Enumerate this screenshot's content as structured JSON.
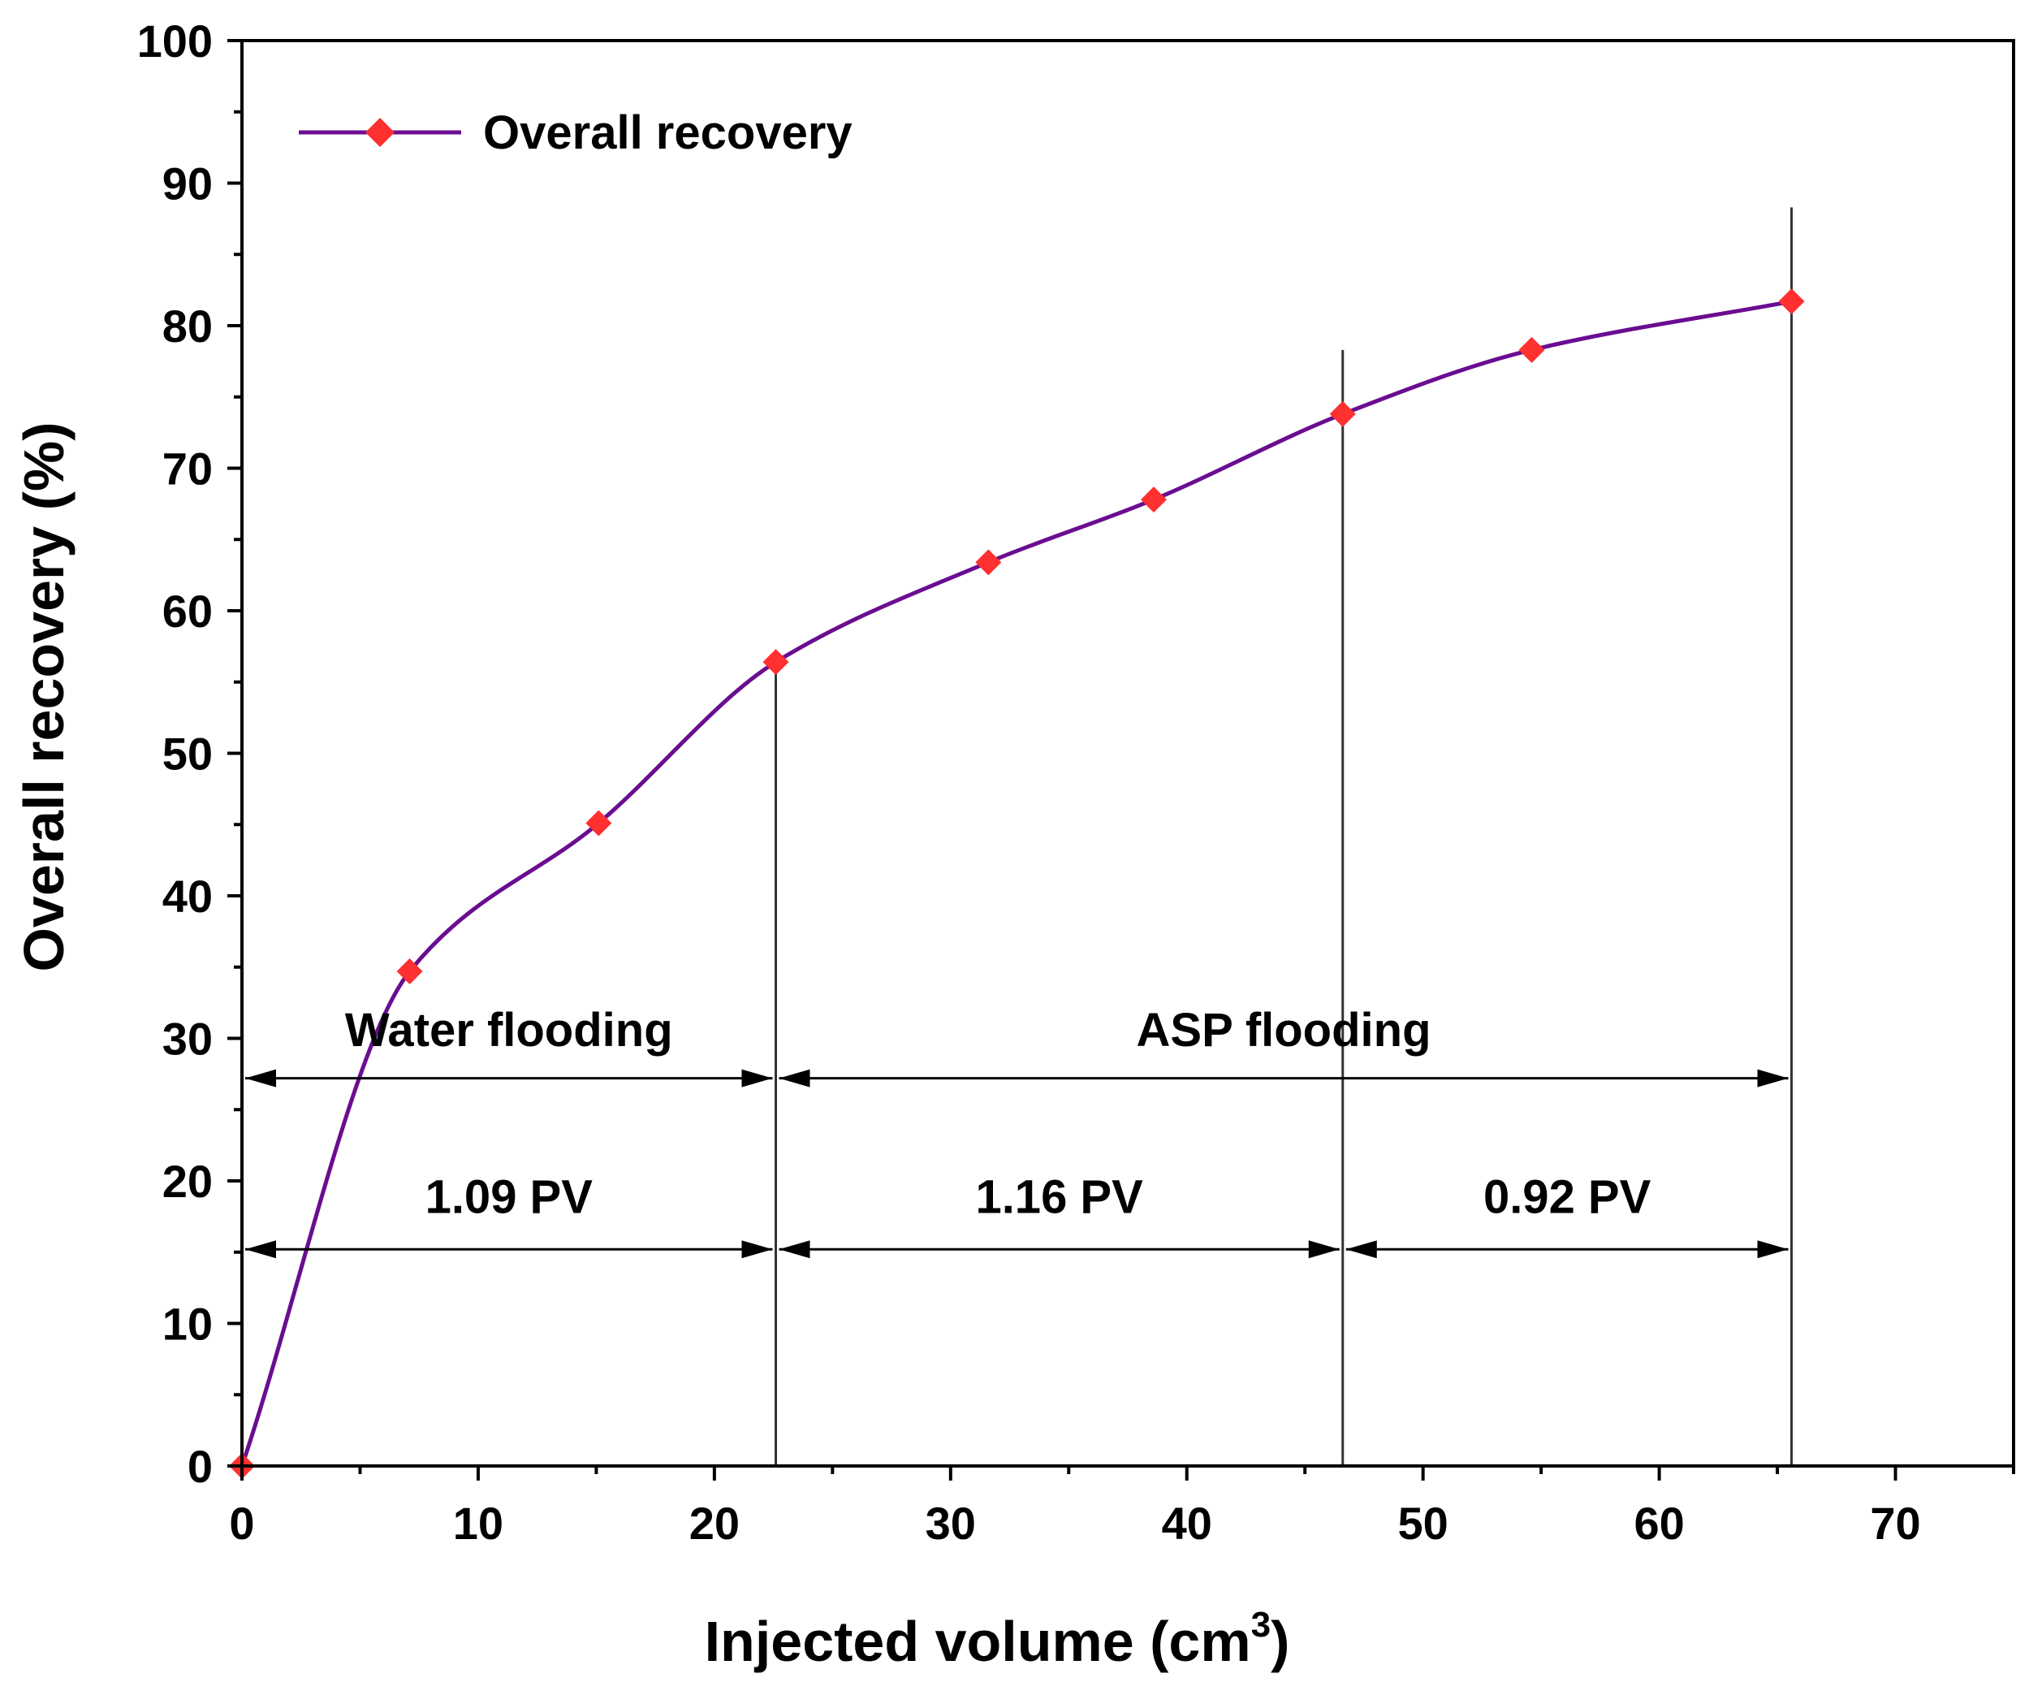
{
  "chart_data": {
    "type": "line",
    "title": "",
    "xlabel": "Injected volume (cm",
    "xlabel_sup": "3",
    "xlabel_close": ")",
    "ylabel": "Overall recovery (%)",
    "xlim": [
      0,
      75
    ],
    "ylim": [
      0,
      100
    ],
    "x_ticks": [
      0,
      10,
      20,
      30,
      40,
      50,
      60,
      70
    ],
    "y_ticks": [
      0,
      10,
      20,
      30,
      40,
      50,
      60,
      70,
      80,
      90,
      100
    ],
    "x_tick_labels": [
      "0",
      "10",
      "20",
      "30",
      "40",
      "50",
      "60",
      "70"
    ],
    "y_tick_labels": [
      "0",
      "10",
      "20",
      "30",
      "40",
      "50",
      "60",
      "70",
      "80",
      "90",
      "100"
    ],
    "grid": false,
    "legend_position": "top-left",
    "series": [
      {
        "name": "Overall recovery",
        "color": "#6a0d91",
        "marker_color": "#ff3030",
        "x": [
          0,
          7.1,
          15.1,
          22.6,
          31.6,
          38.6,
          46.6,
          54.6,
          65.6
        ],
        "y": [
          0,
          34.7,
          45.1,
          56.4,
          63.4,
          67.8,
          73.8,
          78.3,
          81.7
        ]
      }
    ],
    "phase_boundaries": [
      {
        "x": 22.6,
        "y_top": 56.4
      },
      {
        "x": 46.6,
        "y_top": 78.3
      },
      {
        "x": 65.6,
        "y_top": 88.3
      }
    ],
    "phase_spans": [
      {
        "label": "Water flooding",
        "x_start": 0,
        "x_end": 22.6,
        "y": 27.2,
        "label_y": 30.6
      },
      {
        "label": "ASP flooding",
        "x_start": 22.6,
        "x_end": 65.6,
        "y": 27.2,
        "label_y": 30.6
      }
    ],
    "pv_spans": [
      {
        "label": "1.09 PV",
        "x_start": 0,
        "x_end": 22.6,
        "y": 15.2,
        "label_y": 18.9
      },
      {
        "label": "1.16 PV",
        "x_start": 22.6,
        "x_end": 46.6,
        "y": 15.2,
        "label_y": 18.9
      },
      {
        "label": "0.92 PV",
        "x_start": 46.6,
        "x_end": 65.6,
        "y": 15.2,
        "label_y": 18.9
      }
    ]
  }
}
